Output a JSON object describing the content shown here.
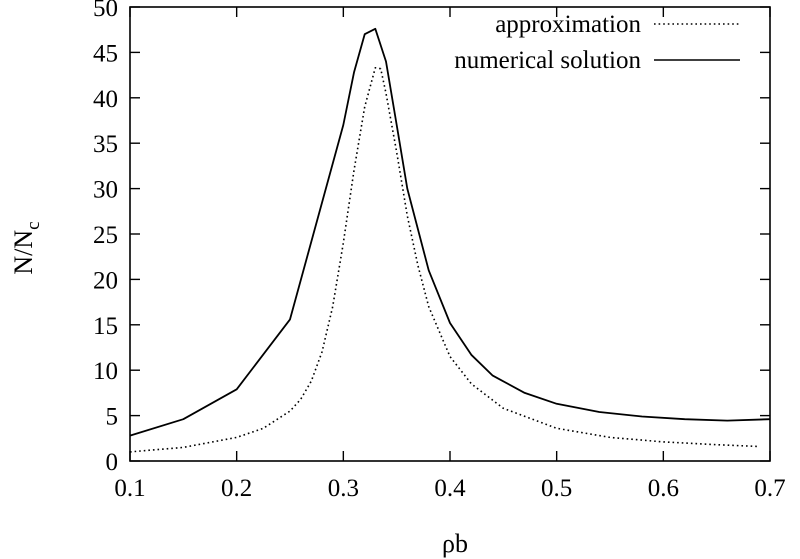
{
  "chart_data": {
    "type": "line",
    "title": "",
    "xlabel": "ρb",
    "ylabel": "N/N",
    "ylabel_subscript": "c",
    "xlim": [
      0.1,
      0.7
    ],
    "ylim": [
      0,
      50
    ],
    "xticks": [
      "0.1",
      "0.2",
      "0.3",
      "0.4",
      "0.5",
      "0.6",
      "0.7"
    ],
    "yticks": [
      "0",
      "5",
      "10",
      "15",
      "20",
      "25",
      "30",
      "35",
      "40",
      "45",
      "50"
    ],
    "grid": false,
    "legend_position": "top-right",
    "series": [
      {
        "name": "approximation",
        "style": "dotted",
        "color": "#000000",
        "points": [
          [
            0.1,
            1.0
          ],
          [
            0.15,
            1.5
          ],
          [
            0.2,
            2.6
          ],
          [
            0.225,
            3.6
          ],
          [
            0.25,
            5.5
          ],
          [
            0.26,
            6.8
          ],
          [
            0.27,
            8.8
          ],
          [
            0.28,
            12.0
          ],
          [
            0.29,
            17.0
          ],
          [
            0.3,
            24.0
          ],
          [
            0.31,
            32.0
          ],
          [
            0.32,
            39.0
          ],
          [
            0.33,
            43.3
          ],
          [
            0.335,
            43.2
          ],
          [
            0.34,
            40.5
          ],
          [
            0.35,
            34.0
          ],
          [
            0.36,
            27.0
          ],
          [
            0.37,
            21.5
          ],
          [
            0.38,
            17.0
          ],
          [
            0.4,
            11.5
          ],
          [
            0.42,
            8.5
          ],
          [
            0.45,
            5.8
          ],
          [
            0.5,
            3.6
          ],
          [
            0.55,
            2.6
          ],
          [
            0.6,
            2.1
          ],
          [
            0.65,
            1.8
          ],
          [
            0.69,
            1.6
          ]
        ]
      },
      {
        "name": "numerical solution",
        "style": "solid",
        "color": "#000000",
        "points": [
          [
            0.1,
            2.8
          ],
          [
            0.15,
            4.6
          ],
          [
            0.2,
            7.9
          ],
          [
            0.25,
            15.6
          ],
          [
            0.3,
            37.0
          ],
          [
            0.31,
            42.8
          ],
          [
            0.32,
            47.0
          ],
          [
            0.33,
            47.6
          ],
          [
            0.34,
            44.0
          ],
          [
            0.35,
            37.0
          ],
          [
            0.36,
            30.0
          ],
          [
            0.38,
            21.0
          ],
          [
            0.4,
            15.2
          ],
          [
            0.42,
            11.7
          ],
          [
            0.44,
            9.4
          ],
          [
            0.47,
            7.5
          ],
          [
            0.5,
            6.3
          ],
          [
            0.54,
            5.4
          ],
          [
            0.58,
            4.9
          ],
          [
            0.62,
            4.6
          ],
          [
            0.66,
            4.45
          ],
          [
            0.7,
            4.6
          ]
        ]
      }
    ]
  }
}
